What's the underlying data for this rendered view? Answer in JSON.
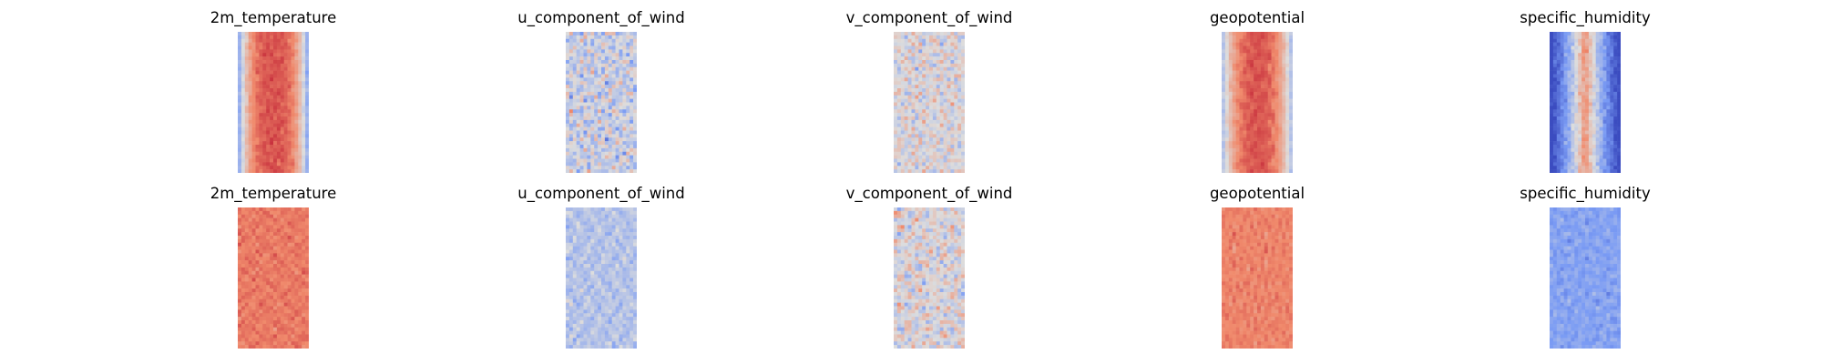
{
  "figure": {
    "rows": [
      {
        "panels": [
          {
            "title": "2m_temperature",
            "style": "temperature"
          },
          {
            "title": "u_component_of_wind",
            "style": "u_wind"
          },
          {
            "title": "v_component_of_wind",
            "style": "v_wind"
          },
          {
            "title": "geopotential",
            "style": "geopotential"
          },
          {
            "title": "specific_humidity",
            "style": "humidity"
          }
        ]
      },
      {
        "panels": [
          {
            "title": "2m_temperature",
            "style": "temperature_noisy"
          },
          {
            "title": "u_component_of_wind",
            "style": "u_wind_noisy"
          },
          {
            "title": "v_component_of_wind",
            "style": "v_wind_noisy"
          },
          {
            "title": "geopotential",
            "style": "geopotential_noisy"
          },
          {
            "title": "specific_humidity",
            "style": "humidity_noisy"
          }
        ]
      }
    ],
    "colormap": "coolwarm",
    "colors": {
      "cold": "#3b4cc0",
      "neutral": "#dddddd",
      "warm": "#b40426"
    }
  }
}
